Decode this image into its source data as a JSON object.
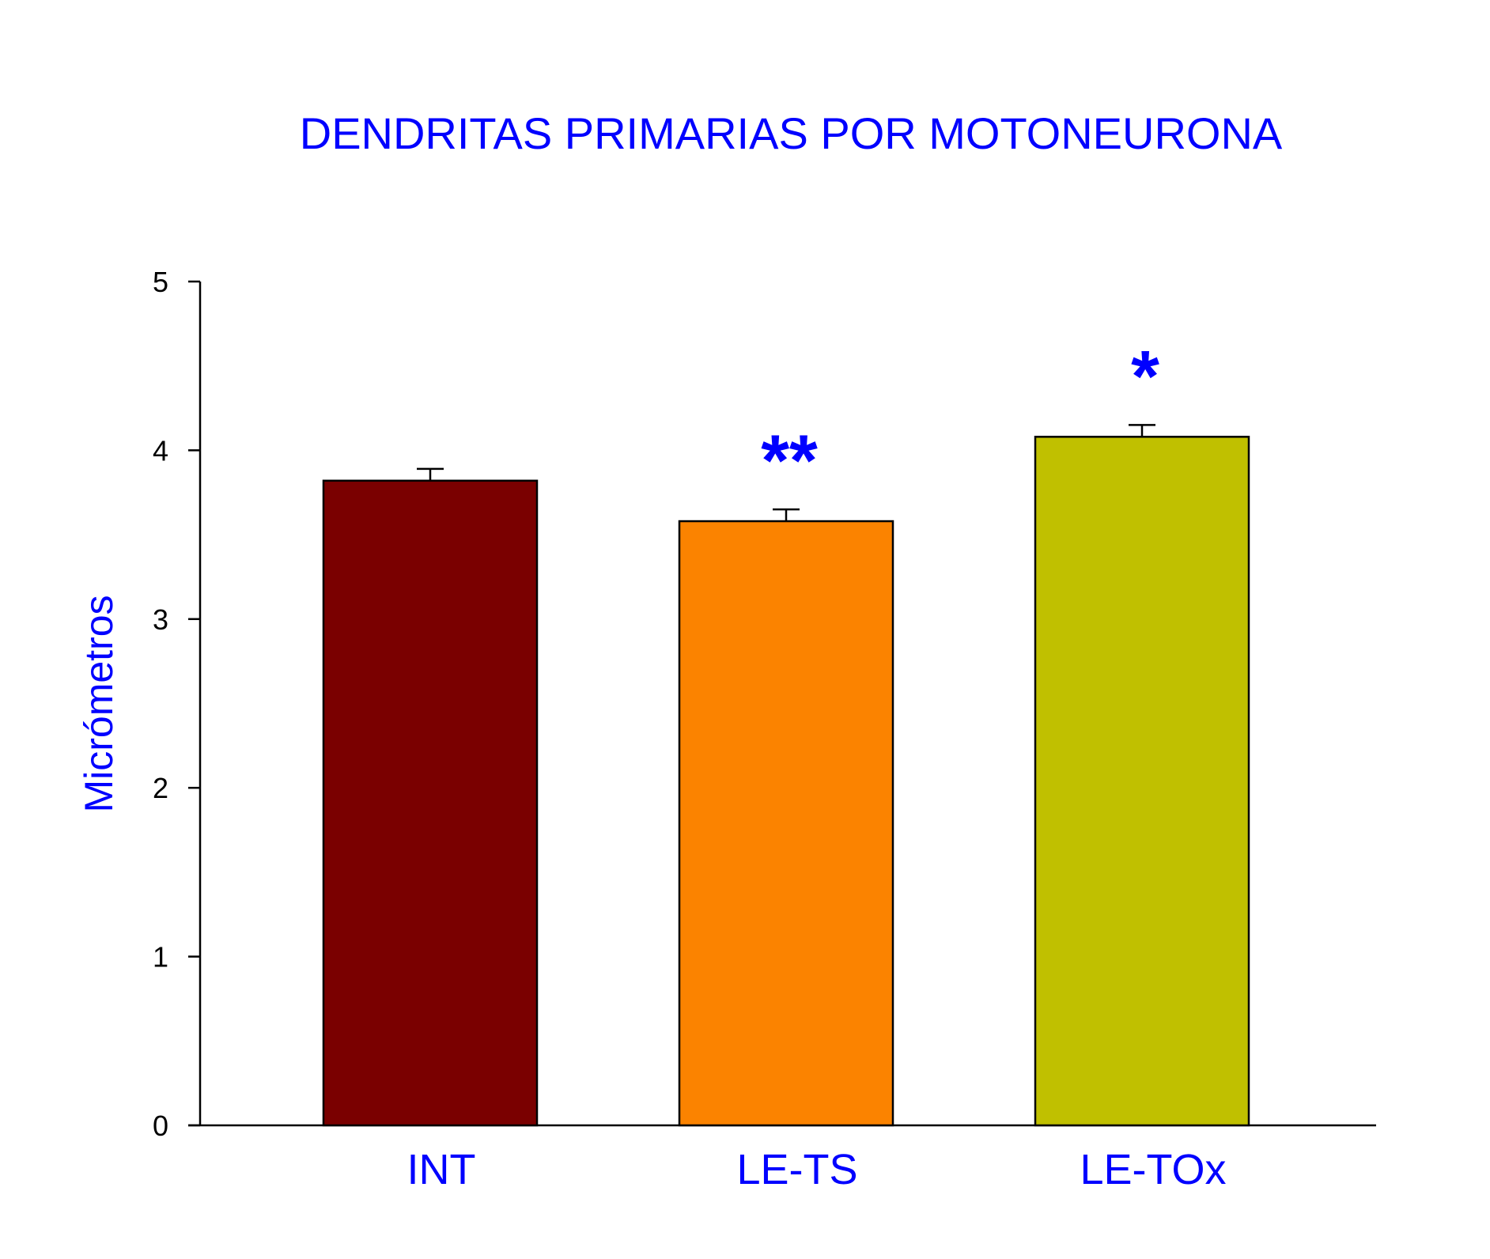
{
  "chart_data": {
    "type": "bar",
    "title": "DENDRITAS PRIMARIAS POR MOTONEURONA",
    "ylabel": "Micrómetros",
    "xlabel": "",
    "ylim": [
      0,
      5
    ],
    "yticks": [
      0,
      1,
      2,
      3,
      4,
      5
    ],
    "grid": false,
    "categories": [
      "INT",
      "LE-TS",
      "LE-TOx"
    ],
    "values": [
      3.82,
      3.58,
      4.08
    ],
    "errors": [
      0.07,
      0.07,
      0.07
    ],
    "annotations": [
      "",
      "**",
      "*"
    ],
    "colors": [
      "#7a0000",
      "#fb8300",
      "#c0c000"
    ]
  }
}
